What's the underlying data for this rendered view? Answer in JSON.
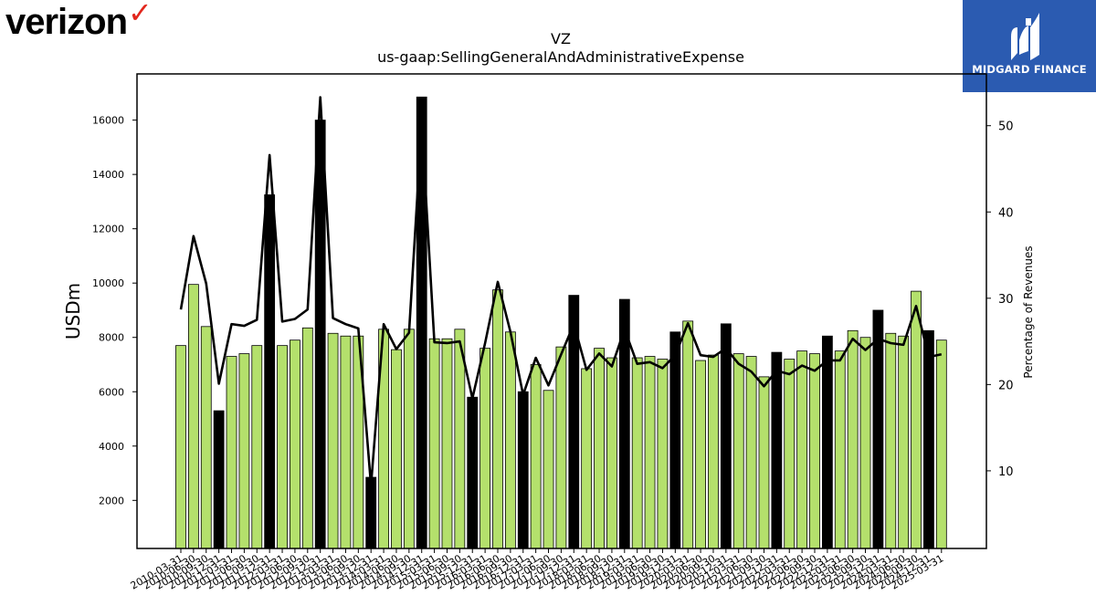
{
  "branding": {
    "company_logo": "verizon",
    "company_mark": "✓",
    "partner_logo_text": "MIDGARD FINANCE",
    "partner_logo_icon": "midgard-m-icon",
    "partner_logo_color": "#2b5bb1"
  },
  "chart_data": {
    "type": "bar",
    "title": "VZ",
    "subtitle": "us-gaap:SellingGeneralAndAdministrativeExpense",
    "ylabel": "USDm",
    "y2label": "Percentage of Revenues",
    "ylim": [
      230,
      17700
    ],
    "y2lim": [
      1.0,
      56.0
    ],
    "yticks": [
      2000,
      4000,
      6000,
      8000,
      10000,
      12000,
      14000,
      16000
    ],
    "y2ticks": [
      10,
      20,
      30,
      40,
      50
    ],
    "colors": {
      "quarter_bar": "#b4e06c",
      "annual_bar": "#000000",
      "bar_edge": "#000000",
      "line": "#000000"
    },
    "categories": [
      "2010-03-31",
      "2010-06-30",
      "2010-09-30",
      "2010-12-31",
      "2011-03-31",
      "2011-06-30",
      "2011-09-30",
      "2011-12-31",
      "2012-03-31",
      "2012-06-30",
      "2012-09-30",
      "2012-12-31",
      "2013-03-31",
      "2013-06-30",
      "2013-09-30",
      "2013-12-31",
      "2014-03-31",
      "2014-06-30",
      "2014-09-30",
      "2014-12-31",
      "2015-03-31",
      "2015-06-30",
      "2015-09-30",
      "2015-12-31",
      "2016-03-31",
      "2016-06-30",
      "2016-09-30",
      "2016-12-31",
      "2017-03-31",
      "2017-06-30",
      "2017-09-30",
      "2017-12-31",
      "2018-03-31",
      "2018-06-30",
      "2018-09-30",
      "2018-12-31",
      "2019-03-31",
      "2019-06-30",
      "2019-09-30",
      "2019-12-31",
      "2020-03-31",
      "2020-06-30",
      "2020-09-30",
      "2020-12-31",
      "2021-03-31",
      "2021-06-30",
      "2021-09-30",
      "2021-12-31",
      "2022-03-31",
      "2022-06-30",
      "2022-09-30",
      "2022-12-31",
      "2023-03-31",
      "2023-06-30",
      "2023-09-30",
      "2023-12-31",
      "2024-03-31",
      "2024-06-30",
      "2024-09-30",
      "2024-12-31",
      "2025-03-31"
    ],
    "series": [
      {
        "values": [
          7700,
          9950,
          8400,
          5300,
          7300,
          7400,
          7700,
          13250,
          7700,
          7900,
          8350,
          16000,
          8150,
          8050,
          8050,
          2850,
          8300,
          7550,
          8300,
          16850,
          7950,
          7950,
          8300,
          5800,
          7600,
          9750,
          8200,
          6000,
          7000,
          6050,
          7650,
          9550,
          6850,
          7600,
          7250,
          9400,
          7250,
          7300,
          7200,
          8200,
          8600,
          7150,
          7350,
          8500,
          7400,
          7300,
          6550,
          7450,
          7200,
          7500,
          7400,
          8050,
          7500,
          8250,
          8000,
          9000,
          8150,
          8050,
          9700,
          8250,
          7900
        ],
        "annual": [
          false,
          false,
          false,
          true,
          false,
          false,
          false,
          true,
          false,
          false,
          false,
          true,
          false,
          false,
          false,
          true,
          false,
          false,
          false,
          true,
          false,
          false,
          false,
          true,
          false,
          false,
          false,
          true,
          false,
          false,
          false,
          true,
          false,
          false,
          false,
          true,
          false,
          false,
          false,
          true,
          false,
          false,
          false,
          true,
          false,
          false,
          false,
          true,
          false,
          false,
          false,
          true,
          false,
          false,
          false,
          true,
          false,
          false,
          false,
          true,
          false
        ]
      },
      {
        "values": [
          28.7,
          37.2,
          31.7,
          20.1,
          27.0,
          26.8,
          27.5,
          46.6,
          27.3,
          27.6,
          28.7,
          53.3,
          27.7,
          27.0,
          26.5,
          8.3,
          27.0,
          24.1,
          26.0,
          50.2,
          24.9,
          24.8,
          25.0,
          18.4,
          24.8,
          31.9,
          26.1,
          18.8,
          23.1,
          19.9,
          23.5,
          27.0,
          21.7,
          23.6,
          22.1,
          26.4,
          22.4,
          22.6,
          21.9,
          23.4,
          27.1,
          23.4,
          23.2,
          24.2,
          22.4,
          21.5,
          19.8,
          21.6,
          21.2,
          22.2,
          21.6,
          22.8,
          22.8,
          25.3,
          24.0,
          25.3,
          24.8,
          24.6,
          29.1,
          23.2,
          23.5
        ]
      }
    ]
  }
}
